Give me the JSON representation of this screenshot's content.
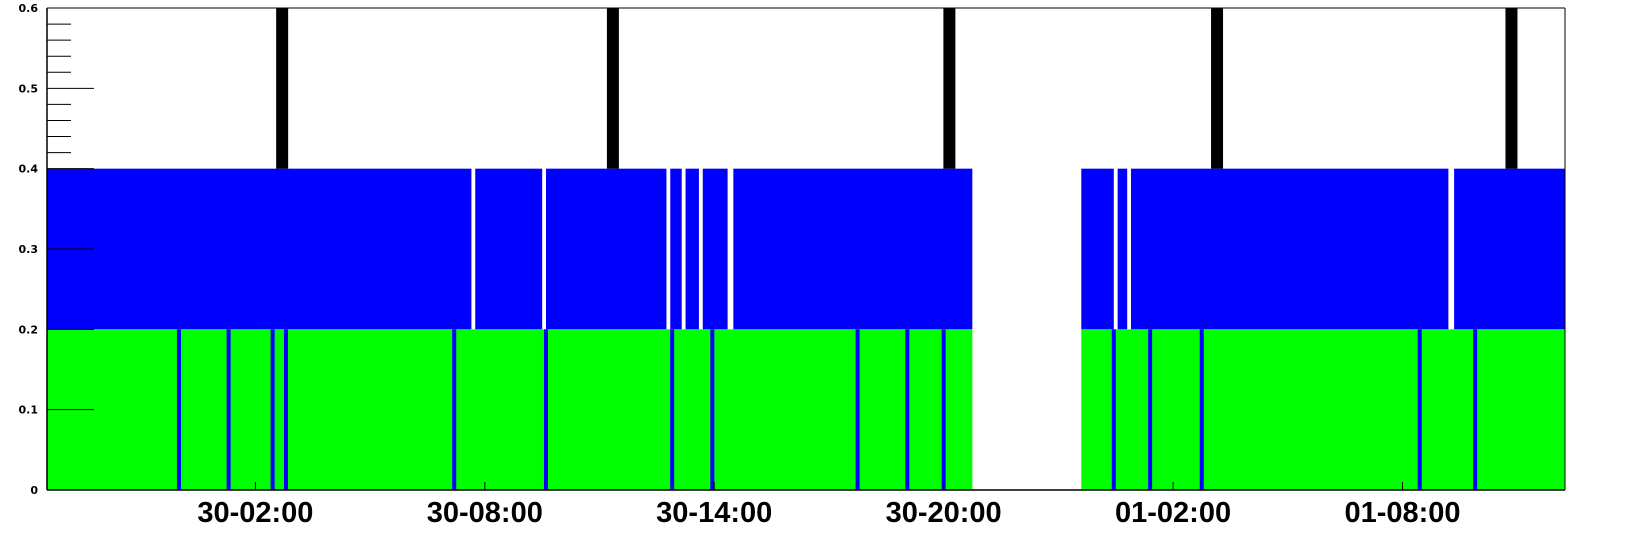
{
  "chart_data": {
    "type": "bar",
    "title": "",
    "xlabel": "",
    "ylabel": "",
    "ylim": [
      0,
      0.6
    ],
    "grid": false,
    "colors": {
      "lower_band": "#00ff00",
      "upper_band": "#0000ff",
      "marker": "#000000",
      "gap": "#ffffff",
      "axis": "#000000"
    },
    "y_ticks": [
      "0",
      "0.1",
      "0.2",
      "0.3",
      "0.4",
      "0.5",
      "0.6"
    ],
    "x_ticks": [
      "30-02:00",
      "30-08:00",
      "30-14:00",
      "30-20:00",
      "01-02:00",
      "01-08:00"
    ],
    "x_range_hours": [
      -3.45,
      36.25
    ],
    "x_tick_hours": [
      2,
      8,
      14,
      20,
      26,
      32
    ],
    "series": [
      {
        "band": [
          0.2,
          0.4
        ],
        "color": "blue",
        "covered": [
          [
            -3.45,
            7.65
          ],
          [
            7.75,
            9.5
          ],
          [
            9.6,
            12.75
          ],
          [
            12.85,
            13.15
          ],
          [
            13.25,
            13.6
          ],
          [
            13.7,
            14.35
          ],
          [
            14.5,
            20.75
          ],
          [
            23.6,
            24.45
          ],
          [
            24.55,
            24.8
          ],
          [
            24.9,
            33.2
          ],
          [
            33.35,
            36.25
          ]
        ],
        "blue_marks_hours": []
      },
      {
        "band": [
          0,
          0.2
        ],
        "color": "green",
        "covered": [
          [
            -3.45,
            20.75
          ],
          [
            23.6,
            36.25
          ]
        ],
        "blue_marks_hours": [
          0.0,
          1.3,
          2.45,
          2.8,
          7.2,
          9.6,
          12.9,
          13.95,
          17.75,
          19.05,
          20.0,
          24.45,
          25.4,
          26.75,
          32.45,
          33.9
        ]
      }
    ],
    "markers_hours": [
      2.7,
      11.35,
      20.15,
      27.15,
      34.85
    ],
    "marker_y": [
      0.4,
      0.6
    ]
  }
}
